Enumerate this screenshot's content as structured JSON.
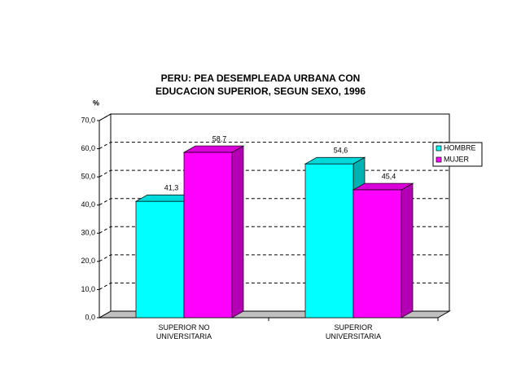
{
  "chart_data": {
    "type": "bar3d",
    "title": "PERU: PEA DESEMPLEADA URBANA CON EDUCACION SUPERIOR, SEGUN SEXO, 1996",
    "ylabel": "%",
    "categories": [
      "SUPERIOR NO UNIVERSITARIA",
      "SUPERIOR UNIVERSITARIA"
    ],
    "series": [
      {
        "name": "HOMBRE",
        "color": "#00ffff",
        "values": [
          41.3,
          54.6
        ],
        "value_labels": [
          "41,3",
          "54,6"
        ]
      },
      {
        "name": "MUJER",
        "color": "#ff00ff",
        "values": [
          58.7,
          45.4
        ],
        "value_labels": [
          "58,7",
          "45,4"
        ]
      }
    ],
    "ylim": [
      0,
      70
    ],
    "yticks": [
      {
        "value": 0,
        "label": "0,0"
      },
      {
        "value": 10,
        "label": "10,0"
      },
      {
        "value": 20,
        "label": "20,0"
      },
      {
        "value": 30,
        "label": "30,0"
      },
      {
        "value": 40,
        "label": "40,0"
      },
      {
        "value": 50,
        "label": "50,0"
      },
      {
        "value": 60,
        "label": "60,0"
      },
      {
        "value": 70,
        "label": "70,0"
      }
    ],
    "grid": true,
    "legend": "right"
  }
}
